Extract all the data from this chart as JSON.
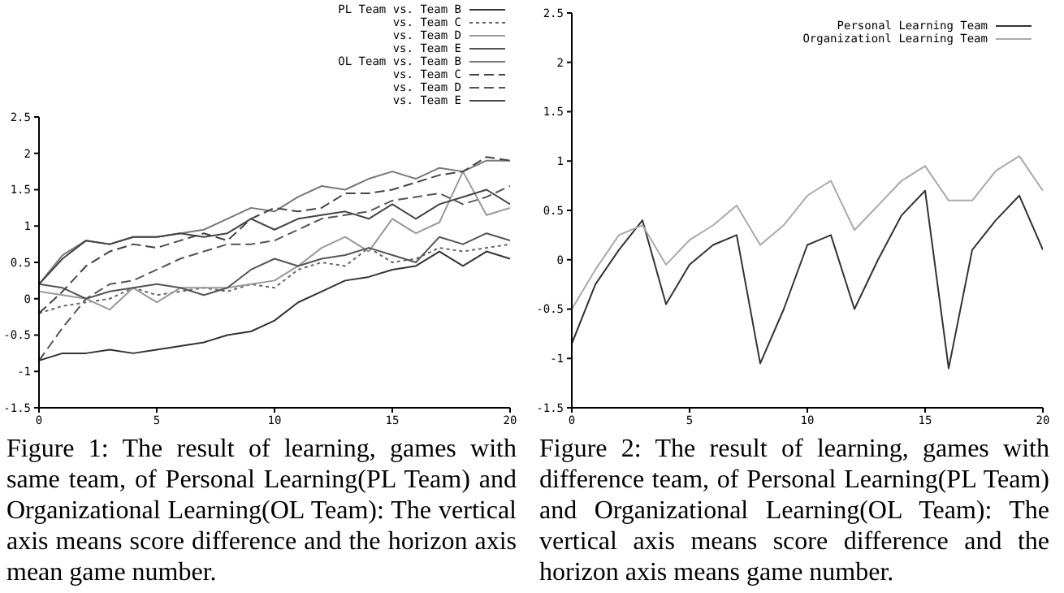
{
  "chart_data": [
    {
      "type": "line",
      "x": [
        0,
        1,
        2,
        3,
        4,
        5,
        6,
        7,
        8,
        9,
        10,
        11,
        12,
        13,
        14,
        15,
        16,
        17,
        18,
        19,
        20
      ],
      "xlim": [
        0,
        20
      ],
      "xticks": [
        0,
        5,
        10,
        15,
        20
      ],
      "ylim": [
        -1.5,
        2.5
      ],
      "yticks": [
        -1.5,
        -1,
        -0.5,
        0,
        0.5,
        1,
        1.5,
        2,
        2.5
      ],
      "grid": false,
      "legend": "top right",
      "marker": "none",
      "annotations": [
        "Figure 1: The result of learning, games with same team, of Personal Learning(PL Team) and Organizational Learning(OL Team): The vertical axis means score difference and the horizon axis mean game number."
      ],
      "series": [
        {
          "name": "PL Team vs. Team B",
          "color": "#333333",
          "line_style": "solid",
          "values": [
            -0.85,
            -0.75,
            -0.75,
            -0.7,
            -0.75,
            -0.7,
            -0.65,
            -0.6,
            -0.5,
            -0.45,
            -0.3,
            -0.05,
            0.1,
            0.25,
            0.3,
            0.4,
            0.45,
            0.65,
            0.45,
            0.65,
            0.55
          ]
        },
        {
          "name": "vs. Team C",
          "color": "#666666",
          "line_style": "dotted",
          "values": [
            -0.2,
            -0.1,
            -0.05,
            0.0,
            0.15,
            0.05,
            0.1,
            0.15,
            0.1,
            0.2,
            0.15,
            0.4,
            0.5,
            0.45,
            0.7,
            0.5,
            0.55,
            0.7,
            0.65,
            0.7,
            0.75
          ]
        },
        {
          "name": "vs. Team D",
          "color": "#999999",
          "line_style": "solid",
          "values": [
            0.1,
            0.05,
            0.0,
            -0.15,
            0.15,
            -0.05,
            0.15,
            0.15,
            0.15,
            0.2,
            0.25,
            0.45,
            0.7,
            0.85,
            0.65,
            1.1,
            0.9,
            1.05,
            1.75,
            1.15,
            1.25
          ]
        },
        {
          "name": "vs. Team E",
          "color": "#555555",
          "line_style": "solid",
          "values": [
            0.2,
            0.15,
            0.0,
            0.1,
            0.15,
            0.2,
            0.15,
            0.05,
            0.15,
            0.4,
            0.55,
            0.45,
            0.55,
            0.6,
            0.7,
            0.6,
            0.5,
            0.85,
            0.75,
            0.9,
            0.8
          ]
        },
        {
          "name": "OL Team vs. Team B",
          "color": "#777777",
          "line_style": "solid",
          "values": [
            0.2,
            0.6,
            0.8,
            0.75,
            0.85,
            0.85,
            0.9,
            0.95,
            1.1,
            1.25,
            1.2,
            1.4,
            1.55,
            1.5,
            1.65,
            1.75,
            1.65,
            1.8,
            1.75,
            1.9,
            1.9
          ]
        },
        {
          "name": "vs. Team C",
          "color": "#444444",
          "line_style": "dashed",
          "values": [
            -0.2,
            0.1,
            0.45,
            0.65,
            0.75,
            0.7,
            0.8,
            0.9,
            0.8,
            1.1,
            1.25,
            1.2,
            1.25,
            1.45,
            1.45,
            1.5,
            1.6,
            1.7,
            1.75,
            1.95,
            1.9
          ]
        },
        {
          "name": "vs. Team D",
          "color": "#555555",
          "line_style": "dashed",
          "values": [
            -0.85,
            -0.4,
            0.0,
            0.2,
            0.25,
            0.4,
            0.55,
            0.65,
            0.75,
            0.75,
            0.8,
            0.95,
            1.1,
            1.15,
            1.2,
            1.35,
            1.4,
            1.45,
            1.3,
            1.4,
            1.55
          ]
        },
        {
          "name": "vs. Team E",
          "color": "#444444",
          "line_style": "solid",
          "values": [
            0.2,
            0.55,
            0.8,
            0.75,
            0.85,
            0.85,
            0.9,
            0.85,
            0.9,
            1.1,
            0.95,
            1.1,
            1.15,
            1.2,
            1.1,
            1.3,
            1.1,
            1.3,
            1.4,
            1.5,
            1.3
          ]
        }
      ]
    },
    {
      "type": "line",
      "x": [
        0,
        1,
        2,
        3,
        4,
        5,
        6,
        7,
        8,
        9,
        10,
        11,
        12,
        13,
        14,
        15,
        16,
        17,
        18,
        19,
        20
      ],
      "xlim": [
        0,
        20
      ],
      "xticks": [
        0,
        5,
        10,
        15,
        20
      ],
      "ylim": [
        -1.5,
        2.5
      ],
      "yticks": [
        -1.5,
        -1,
        -0.5,
        0,
        0.5,
        1,
        1.5,
        2,
        2.5
      ],
      "grid": false,
      "legend": "top right",
      "marker": "none",
      "annotations": [
        "Figure 2: The result of learning, games with difference team, of Personal Learning(PL Team) and Organizational Learning(OL Team): The vertical axis means score difference and the horizon axis means game number."
      ],
      "series": [
        {
          "name": "Personal Learning Team",
          "color": "#333333",
          "line_style": "solid",
          "values": [
            -0.85,
            -0.25,
            0.1,
            0.4,
            -0.45,
            -0.05,
            0.15,
            0.25,
            -1.05,
            -0.5,
            0.15,
            0.25,
            -0.5,
            0.0,
            0.45,
            0.7,
            -1.1,
            0.1,
            0.4,
            0.65,
            0.1
          ]
        },
        {
          "name": "Organizationl Learning Team",
          "color": "#aaaaaa",
          "line_style": "solid",
          "values": [
            -0.5,
            -0.1,
            0.25,
            0.35,
            -0.05,
            0.2,
            0.35,
            0.55,
            0.15,
            0.35,
            0.65,
            0.8,
            0.3,
            0.55,
            0.8,
            0.95,
            0.6,
            0.6,
            0.9,
            1.05,
            0.7
          ]
        }
      ]
    }
  ]
}
